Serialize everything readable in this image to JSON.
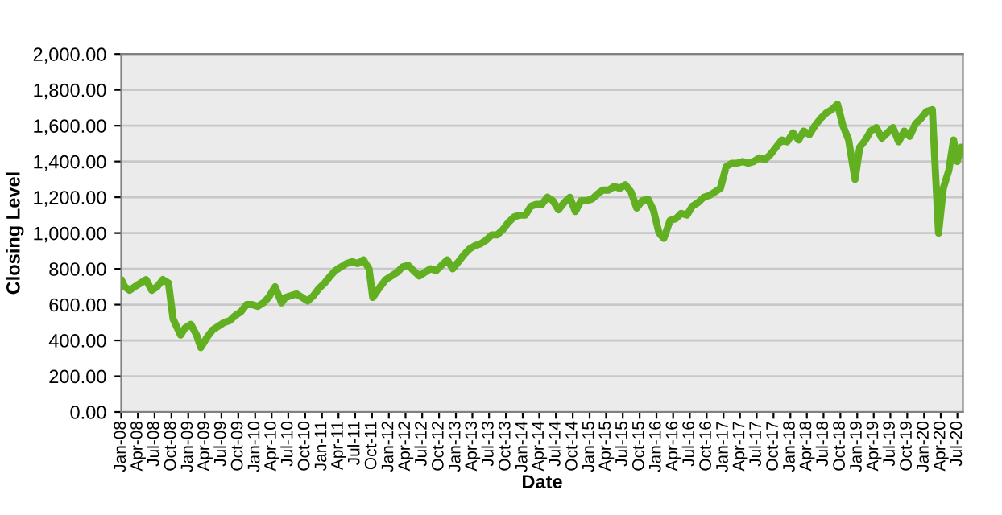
{
  "chart_data": {
    "type": "line",
    "xlabel": "Date",
    "ylabel": "Closing Level",
    "x": [
      "2008-01-01",
      "2008-01-20",
      "2008-02-15",
      "2008-03-15",
      "2008-04-15",
      "2008-05-15",
      "2008-06-15",
      "2008-07-15",
      "2008-08-15",
      "2008-09-15",
      "2008-10-10",
      "2008-11-20",
      "2008-12-15",
      "2009-01-15",
      "2009-02-15",
      "2009-03-10",
      "2009-04-15",
      "2009-05-15",
      "2009-06-15",
      "2009-07-15",
      "2009-08-15",
      "2009-09-15",
      "2009-10-15",
      "2009-11-15",
      "2009-12-15",
      "2010-01-15",
      "2010-02-15",
      "2010-03-15",
      "2010-04-20",
      "2010-05-25",
      "2010-06-15",
      "2010-07-15",
      "2010-08-15",
      "2010-09-15",
      "2010-10-15",
      "2010-11-15",
      "2010-12-15",
      "2011-01-15",
      "2011-02-15",
      "2011-03-15",
      "2011-04-15",
      "2011-05-15",
      "2011-06-15",
      "2011-07-15",
      "2011-08-15",
      "2011-09-15",
      "2011-10-05",
      "2011-11-15",
      "2011-12-15",
      "2012-01-15",
      "2012-02-15",
      "2012-03-15",
      "2012-04-15",
      "2012-05-15",
      "2012-06-15",
      "2012-07-15",
      "2012-08-15",
      "2012-09-15",
      "2012-10-15",
      "2012-11-15",
      "2012-12-15",
      "2013-01-15",
      "2013-02-15",
      "2013-03-15",
      "2013-04-15",
      "2013-05-15",
      "2013-06-15",
      "2013-07-15",
      "2013-08-15",
      "2013-09-15",
      "2013-10-15",
      "2013-11-15",
      "2013-12-15",
      "2014-01-15",
      "2014-02-15",
      "2014-03-15",
      "2014-04-15",
      "2014-05-15",
      "2014-06-15",
      "2014-07-15",
      "2014-08-15",
      "2014-09-15",
      "2014-10-15",
      "2014-11-15",
      "2014-12-15",
      "2015-01-15",
      "2015-02-15",
      "2015-03-15",
      "2015-04-15",
      "2015-05-15",
      "2015-06-15",
      "2015-07-15",
      "2015-08-15",
      "2015-09-15",
      "2015-10-15",
      "2015-11-15",
      "2015-12-15",
      "2016-01-15",
      "2016-02-10",
      "2016-03-15",
      "2016-04-15",
      "2016-05-15",
      "2016-06-15",
      "2016-07-15",
      "2016-08-15",
      "2016-09-15",
      "2016-10-15",
      "2016-11-15",
      "2016-12-15",
      "2017-01-15",
      "2017-02-15",
      "2017-03-15",
      "2017-04-15",
      "2017-05-15",
      "2017-06-15",
      "2017-07-15",
      "2017-08-15",
      "2017-09-15",
      "2017-10-15",
      "2017-11-15",
      "2017-12-15",
      "2018-01-15",
      "2018-02-15",
      "2018-03-15",
      "2018-04-15",
      "2018-05-15",
      "2018-06-15",
      "2018-07-15",
      "2018-08-15",
      "2018-09-15",
      "2018-10-15",
      "2018-11-15",
      "2018-12-20",
      "2019-01-15",
      "2019-02-15",
      "2019-03-15",
      "2019-04-15",
      "2019-05-15",
      "2019-06-15",
      "2019-07-15",
      "2019-08-15",
      "2019-09-15",
      "2019-10-15",
      "2019-11-15",
      "2019-12-15",
      "2020-01-15",
      "2020-02-15",
      "2020-03-05",
      "2020-03-20",
      "2020-04-15",
      "2020-05-15",
      "2020-06-10",
      "2020-06-30",
      "2020-07-20"
    ],
    "series": [
      {
        "color": "#62b021",
        "values": [
          740,
          700,
          680,
          700,
          720,
          740,
          680,
          700,
          740,
          720,
          520,
          430,
          470,
          490,
          430,
          360,
          420,
          460,
          480,
          500,
          510,
          540,
          560,
          600,
          600,
          590,
          610,
          640,
          700,
          610,
          640,
          650,
          660,
          640,
          620,
          650,
          690,
          720,
          760,
          790,
          810,
          830,
          840,
          830,
          850,
          800,
          640,
          700,
          740,
          760,
          780,
          810,
          820,
          790,
          760,
          780,
          800,
          790,
          820,
          850,
          800,
          840,
          880,
          910,
          930,
          940,
          960,
          990,
          990,
          1020,
          1060,
          1090,
          1100,
          1100,
          1150,
          1160,
          1160,
          1200,
          1180,
          1130,
          1170,
          1200,
          1120,
          1180,
          1180,
          1190,
          1220,
          1240,
          1240,
          1260,
          1250,
          1270,
          1230,
          1140,
          1180,
          1190,
          1130,
          1000,
          970,
          1070,
          1080,
          1110,
          1100,
          1150,
          1170,
          1200,
          1210,
          1230,
          1250,
          1370,
          1390,
          1390,
          1400,
          1390,
          1400,
          1420,
          1410,
          1440,
          1480,
          1520,
          1510,
          1560,
          1520,
          1570,
          1550,
          1600,
          1640,
          1670,
          1690,
          1720,
          1600,
          1520,
          1300,
          1480,
          1520,
          1570,
          1590,
          1530,
          1560,
          1590,
          1510,
          1570,
          1540,
          1610,
          1640,
          1680,
          1690,
          1300,
          1000,
          1250,
          1350,
          1520,
          1400,
          1480
        ]
      }
    ],
    "xlim": [
      "2008-01-01",
      "2020-07-31"
    ],
    "xticks": [
      {
        "value": "2008-01-01",
        "label": "Jan-08"
      },
      {
        "value": "2008-04-01",
        "label": "Apr-08"
      },
      {
        "value": "2008-07-01",
        "label": "Jul-08"
      },
      {
        "value": "2008-10-01",
        "label": "Oct-08"
      },
      {
        "value": "2009-01-01",
        "label": "Jan-09"
      },
      {
        "value": "2009-04-01",
        "label": "Apr-09"
      },
      {
        "value": "2009-07-01",
        "label": "Jul-09"
      },
      {
        "value": "2009-10-01",
        "label": "Oct-09"
      },
      {
        "value": "2010-01-01",
        "label": "Jan-10"
      },
      {
        "value": "2010-04-01",
        "label": "Apr-10"
      },
      {
        "value": "2010-07-01",
        "label": "Jul-10"
      },
      {
        "value": "2010-10-01",
        "label": "Oct-10"
      },
      {
        "value": "2011-01-01",
        "label": "Jan-11"
      },
      {
        "value": "2011-04-01",
        "label": "Apr-11"
      },
      {
        "value": "2011-07-01",
        "label": "Jul-11"
      },
      {
        "value": "2011-10-01",
        "label": "Oct-11"
      },
      {
        "value": "2012-01-01",
        "label": "Jan-12"
      },
      {
        "value": "2012-04-01",
        "label": "Apr-12"
      },
      {
        "value": "2012-07-01",
        "label": "Jul-12"
      },
      {
        "value": "2012-10-01",
        "label": "Oct-12"
      },
      {
        "value": "2013-01-01",
        "label": "Jan-13"
      },
      {
        "value": "2013-04-01",
        "label": "Apr-13"
      },
      {
        "value": "2013-07-01",
        "label": "Jul-13"
      },
      {
        "value": "2013-10-01",
        "label": "Oct-13"
      },
      {
        "value": "2014-01-01",
        "label": "Jan-14"
      },
      {
        "value": "2014-04-01",
        "label": "Apr-14"
      },
      {
        "value": "2014-07-01",
        "label": "Jul-14"
      },
      {
        "value": "2014-10-01",
        "label": "Oct-14"
      },
      {
        "value": "2015-01-01",
        "label": "Jan-15"
      },
      {
        "value": "2015-04-01",
        "label": "Apr-15"
      },
      {
        "value": "2015-07-01",
        "label": "Jul-15"
      },
      {
        "value": "2015-10-01",
        "label": "Oct-15"
      },
      {
        "value": "2016-01-01",
        "label": "Jan-16"
      },
      {
        "value": "2016-04-01",
        "label": "Apr-16"
      },
      {
        "value": "2016-07-01",
        "label": "Jul-16"
      },
      {
        "value": "2016-10-01",
        "label": "Oct-16"
      },
      {
        "value": "2017-01-01",
        "label": "Jan-17"
      },
      {
        "value": "2017-04-01",
        "label": "Apr-17"
      },
      {
        "value": "2017-07-01",
        "label": "Jul-17"
      },
      {
        "value": "2017-10-01",
        "label": "Oct-17"
      },
      {
        "value": "2018-01-01",
        "label": "Jan-18"
      },
      {
        "value": "2018-04-01",
        "label": "Apr-18"
      },
      {
        "value": "2018-07-01",
        "label": "Jul-18"
      },
      {
        "value": "2018-10-01",
        "label": "Oct-18"
      },
      {
        "value": "2019-01-01",
        "label": "Jan-19"
      },
      {
        "value": "2019-04-01",
        "label": "Apr-19"
      },
      {
        "value": "2019-07-01",
        "label": "Jul-19"
      },
      {
        "value": "2019-10-01",
        "label": "Oct-19"
      },
      {
        "value": "2020-01-01",
        "label": "Jan-20"
      },
      {
        "value": "2020-04-01",
        "label": "Apr-20"
      },
      {
        "value": "2020-07-01",
        "label": "Jul-20"
      }
    ],
    "ylim": [
      0,
      2000
    ],
    "yticks": [
      {
        "value": 0,
        "label": "0.00"
      },
      {
        "value": 200,
        "label": "200.00"
      },
      {
        "value": 400,
        "label": "400.00"
      },
      {
        "value": 600,
        "label": "600.00"
      },
      {
        "value": 800,
        "label": "800.00"
      },
      {
        "value": 1000,
        "label": "1,000.00"
      },
      {
        "value": 1200,
        "label": "1,200.00"
      },
      {
        "value": 1400,
        "label": "1,400.00"
      },
      {
        "value": 1600,
        "label": "1,600.00"
      },
      {
        "value": 1800,
        "label": "1,800.00"
      },
      {
        "value": 2000,
        "label": "2,000.00"
      }
    ],
    "grid": "y",
    "legend": false
  }
}
